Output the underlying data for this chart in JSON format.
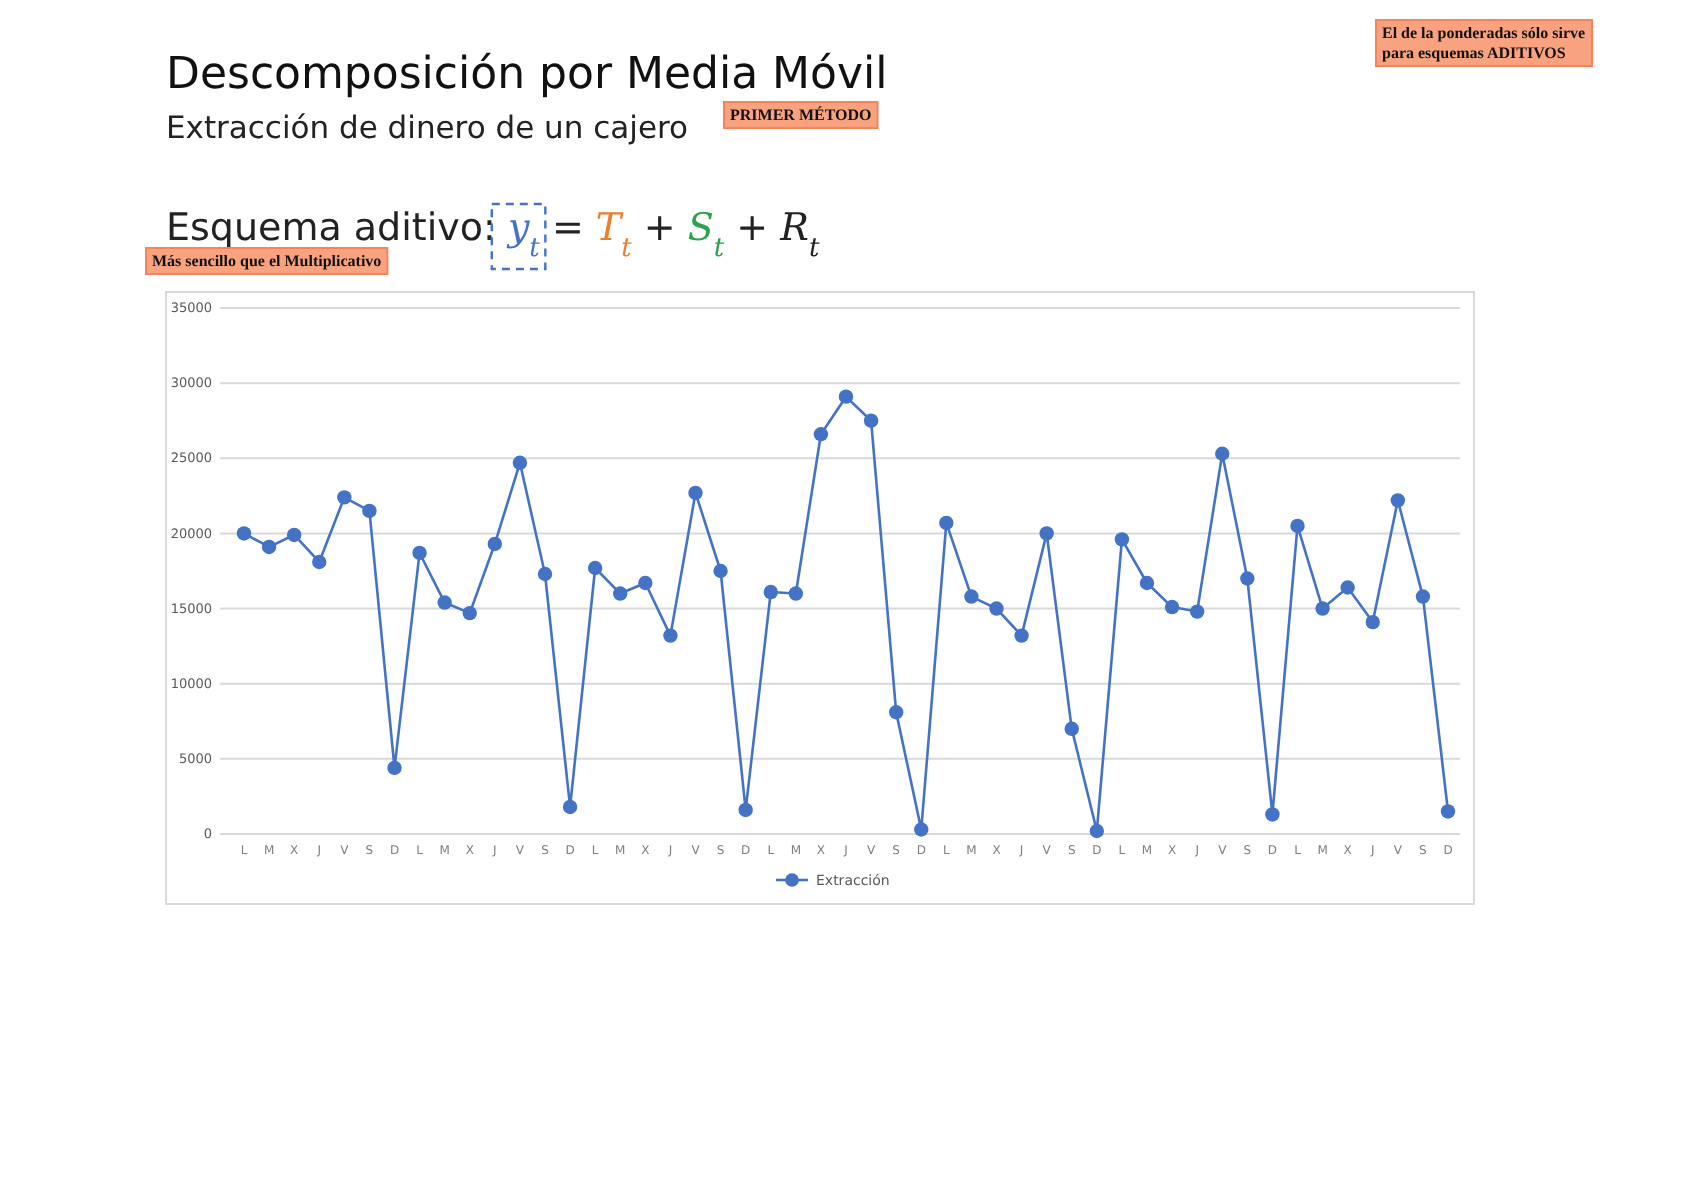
{
  "chart_data": {
    "type": "line",
    "title": "Descomposición por Media Móvil",
    "subtitle": "Extracción de dinero de un cajero",
    "annotations": [
      "Esquema aditivo: y$_{t}$ = T$_{t}$ + S$_{t}$ + R$_{t}$",
      "PRIMER MÉTODO",
      "Más sencillo que el Multiplicativo",
      "El de la ponderadas sólo sirve para esquemas ADITIVOS"
    ],
    "categories": [
      "L",
      "M",
      "X",
      "J",
      "V",
      "S",
      "D",
      "L",
      "M",
      "X",
      "J",
      "V",
      "S",
      "D",
      "L",
      "M",
      "X",
      "J",
      "V",
      "S",
      "D",
      "L",
      "M",
      "X",
      "J",
      "V",
      "S",
      "D",
      "L",
      "M",
      "X",
      "J",
      "V",
      "S",
      "D",
      "L",
      "M",
      "X",
      "J",
      "V",
      "S",
      "D",
      "L",
      "M",
      "X",
      "J",
      "V",
      "S",
      "D"
    ],
    "series": [
      {
        "name": "Extracción",
        "color": "#4472c4",
        "values": [
          20000,
          19100,
          19900,
          18100,
          22400,
          21500,
          4400,
          18700,
          15400,
          14700,
          19300,
          24700,
          17300,
          1800,
          17700,
          16000,
          16700,
          13200,
          22700,
          17500,
          1600,
          16100,
          16000,
          26600,
          29100,
          27500,
          8100,
          300,
          20700,
          15800,
          15000,
          13200,
          20000,
          7000,
          200,
          19600,
          16700,
          15100,
          14800,
          25300,
          17000,
          1300,
          20500,
          15000,
          16400,
          14100,
          22200,
          15800,
          1500
        ]
      }
    ],
    "ylim": [
      0,
      35000
    ],
    "yticks": [
      0,
      5000,
      10000,
      15000,
      20000,
      25000,
      30000,
      35000
    ],
    "grid": "y",
    "legend": "bottom",
    "marker": "circle",
    "line_style": "solid"
  }
}
